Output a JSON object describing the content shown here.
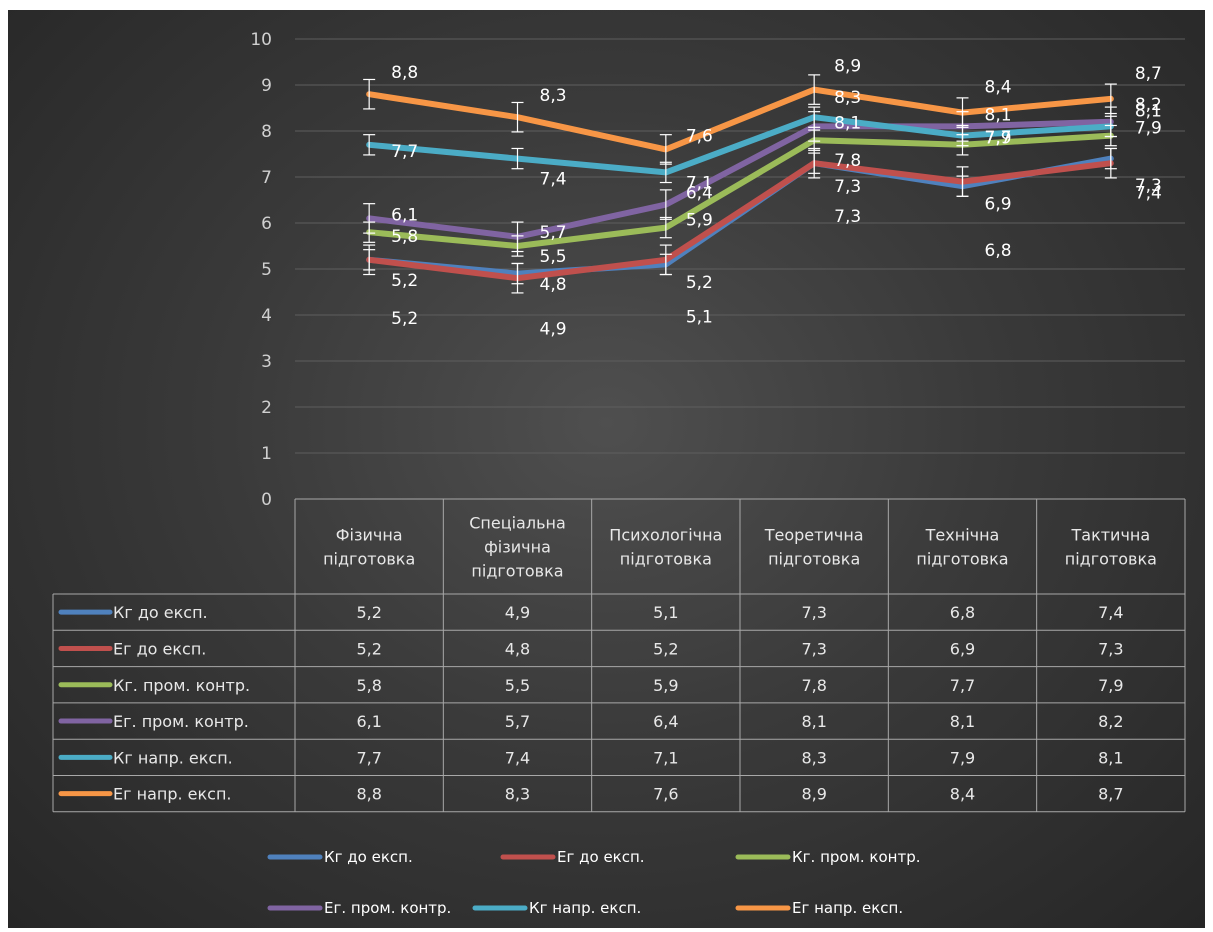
{
  "chart_data": {
    "type": "line",
    "ylim": [
      0,
      10
    ],
    "yticks": [
      "0",
      "1",
      "2",
      "3",
      "4",
      "5",
      "6",
      "7",
      "8",
      "9",
      "10"
    ],
    "grid": true,
    "error_bars": true,
    "legend_position": "bottom",
    "categories": [
      [
        "Фізична",
        "підготовка"
      ],
      [
        "Спеціальна",
        "фізична",
        "підготовка"
      ],
      [
        "Психологічна",
        "підготовка"
      ],
      [
        "Теоретична",
        "підготовка"
      ],
      [
        "Технічна",
        "підготовка"
      ],
      [
        "Тактична",
        "підготовка"
      ]
    ],
    "series": [
      {
        "name": "Кг до експ.",
        "color": "#4f81bd",
        "values": [
          5.2,
          4.9,
          5.1,
          7.3,
          6.8,
          7.4
        ],
        "labels": [
          "5,2",
          "4,9",
          "5,1",
          "7,3",
          "6,8",
          "7,4"
        ]
      },
      {
        "name": "Ег до експ.",
        "color": "#c0504d",
        "values": [
          5.2,
          4.8,
          5.2,
          7.3,
          6.9,
          7.3
        ],
        "labels": [
          "5,2",
          "4,8",
          "5,2",
          "7,3",
          "6,9",
          "7,3"
        ]
      },
      {
        "name": "Кг. пром. контр.",
        "color": "#9bbb59",
        "values": [
          5.8,
          5.5,
          5.9,
          7.8,
          7.7,
          7.9
        ],
        "labels": [
          "5,8",
          "5,5",
          "5,9",
          "7,8",
          "7,7",
          "7,9"
        ]
      },
      {
        "name": "Ег. пром. контр.",
        "color": "#8064a2",
        "values": [
          6.1,
          5.7,
          6.4,
          8.1,
          8.1,
          8.2
        ],
        "labels": [
          "6,1",
          "5,7",
          "6,4",
          "8,1",
          "8,1",
          "8,2"
        ]
      },
      {
        "name": "Кг напр. експ.",
        "color": "#4bacc6",
        "values": [
          7.7,
          7.4,
          7.1,
          8.3,
          7.9,
          8.1
        ],
        "labels": [
          "7,7",
          "7,4",
          "7,1",
          "8,3",
          "7,9",
          "8,1"
        ]
      },
      {
        "name": "Ег напр. експ.",
        "color": "#f79646",
        "values": [
          8.8,
          8.3,
          7.6,
          8.9,
          8.4,
          8.7
        ],
        "labels": [
          "8,8",
          "8,3",
          "7,6",
          "8,9",
          "8,4",
          "8,7"
        ]
      }
    ]
  }
}
